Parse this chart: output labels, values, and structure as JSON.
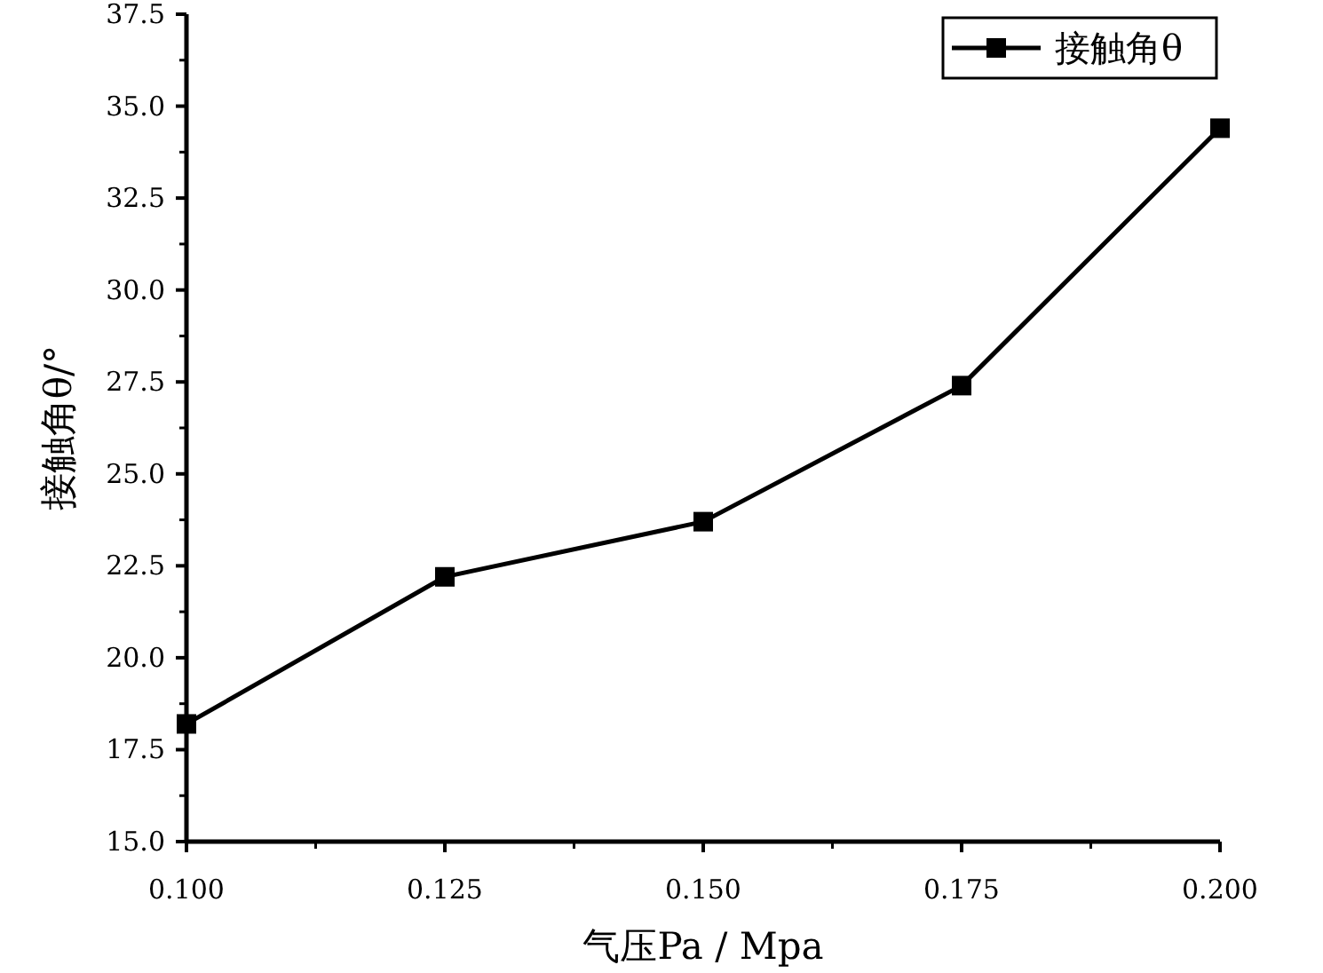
{
  "chart_data": {
    "type": "line",
    "xlabel": "气压Pa / Mpa",
    "ylabel": "接触角θ/°",
    "x": [
      0.1,
      0.125,
      0.15,
      0.175,
      0.2
    ],
    "series": [
      {
        "name": "接触角θ",
        "color": "#000000",
        "values": [
          18.2,
          22.2,
          23.7,
          27.4,
          34.4
        ]
      }
    ],
    "xlim": [
      0.1,
      0.2
    ],
    "ylim": [
      15,
      37.5
    ],
    "xticks": [
      {
        "value": 0.1,
        "label": "0.100"
      },
      {
        "value": 0.125,
        "label": "0.125"
      },
      {
        "value": 0.15,
        "label": "0.150"
      },
      {
        "value": 0.175,
        "label": "0.175"
      },
      {
        "value": 0.2,
        "label": "0.200"
      }
    ],
    "yticks": [
      {
        "value": 15,
        "label": "15.0"
      },
      {
        "value": 17.5,
        "label": "17.5"
      },
      {
        "value": 20,
        "label": "20.0"
      },
      {
        "value": 22.5,
        "label": "22.5"
      },
      {
        "value": 25,
        "label": "25.0"
      },
      {
        "value": 27.5,
        "label": "27.5"
      },
      {
        "value": 30,
        "label": "30.0"
      },
      {
        "value": 32.5,
        "label": "32.5"
      },
      {
        "value": 35,
        "label": "35.0"
      },
      {
        "value": 37.5,
        "label": "37.5"
      }
    ],
    "marker": "square",
    "line_style": "solid",
    "grid": false,
    "legend": "top right"
  }
}
